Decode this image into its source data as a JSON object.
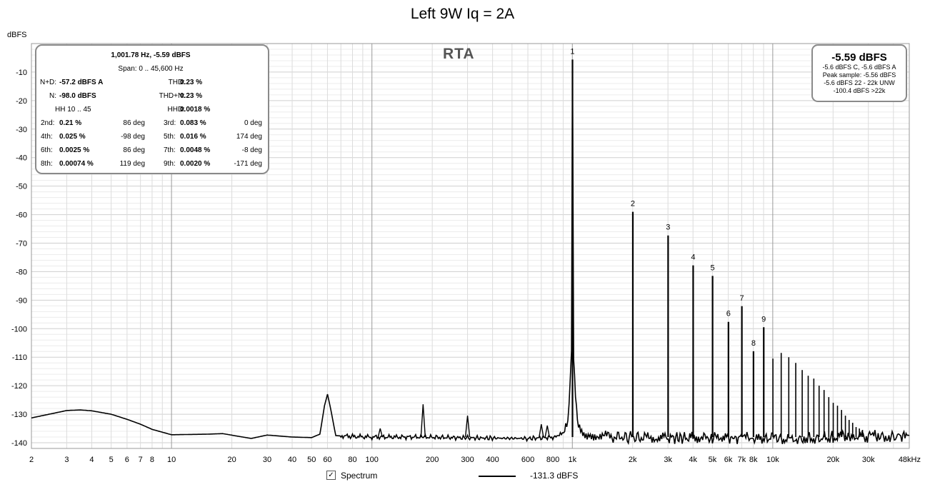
{
  "title": "Left 9W Iq = 2A",
  "y_unit": "dBFS",
  "rta_label": "RTA",
  "info": {
    "header": "1,001.78 Hz, -5.59 dBFS",
    "span": "Span: 0 .. 45,600 Hz",
    "nd_label": "N+D:",
    "nd_value": "-57.2 dBFS A",
    "thd_label": "THD:",
    "thd_value": "0.23 %",
    "n_label": "N:",
    "n_value": "-98.0 dBFS",
    "thdn_label": "THD+N:",
    "thdn_value": "0.23 %",
    "hh_label": "HH 10 .. 45",
    "hhd_label": "HHD:",
    "hhd_value": "0.0018 %",
    "harmonics": [
      {
        "l1": "2nd:",
        "v1": "0.21 %",
        "d1": "86 deg",
        "l2": "3rd:",
        "v2": "0.083 %",
        "d2": "0 deg"
      },
      {
        "l1": "4th:",
        "v1": "0.025 %",
        "d1": "-98 deg",
        "l2": "5th:",
        "v2": "0.016 %",
        "d2": "174 deg"
      },
      {
        "l1": "6th:",
        "v1": "0.0025 %",
        "d1": "86 deg",
        "l2": "7th:",
        "v2": "0.0048 %",
        "d2": "-8 deg"
      },
      {
        "l1": "8th:",
        "v1": "0.00074 %",
        "d1": "119 deg",
        "l2": "9th:",
        "v2": "0.0020 %",
        "d2": "-171 deg"
      }
    ]
  },
  "peak_box": {
    "main": "-5.59 dBFS",
    "lines": [
      "-5.6 dBFS C, -5.6 dBFS A",
      "Peak sample: -5.56 dBFS",
      "-5.6 dBFS 22 - 22k UNW",
      "-100.4 dBFS >22k"
    ]
  },
  "legend": {
    "checkbox": "✓",
    "label": "Spectrum",
    "value": "-131.3 dBFS"
  },
  "chart_data": {
    "type": "line",
    "x_scale": "log",
    "xlim": [
      2,
      48000
    ],
    "ylim": [
      -142,
      0
    ],
    "ylabel": "dBFS",
    "y_ticks": [
      -10,
      -20,
      -30,
      -40,
      -50,
      -60,
      -70,
      -80,
      -90,
      -100,
      -110,
      -120,
      -130,
      -140
    ],
    "x_ticks": [
      {
        "v": 2,
        "t": "2"
      },
      {
        "v": 3,
        "t": "3"
      },
      {
        "v": 4,
        "t": "4"
      },
      {
        "v": 5,
        "t": "5"
      },
      {
        "v": 6,
        "t": "6"
      },
      {
        "v": 7,
        "t": "7"
      },
      {
        "v": 8,
        "t": "8"
      },
      {
        "v": 10,
        "t": "10"
      },
      {
        "v": 20,
        "t": "20"
      },
      {
        "v": 30,
        "t": "30"
      },
      {
        "v": 40,
        "t": "40"
      },
      {
        "v": 50,
        "t": "50"
      },
      {
        "v": 60,
        "t": "60"
      },
      {
        "v": 80,
        "t": "80"
      },
      {
        "v": 100,
        "t": "100"
      },
      {
        "v": 200,
        "t": "200"
      },
      {
        "v": 300,
        "t": "300"
      },
      {
        "v": 400,
        "t": "400"
      },
      {
        "v": 600,
        "t": "600"
      },
      {
        "v": 800,
        "t": "800"
      },
      {
        "v": 1000,
        "t": "1k"
      },
      {
        "v": 2000,
        "t": "2k"
      },
      {
        "v": 3000,
        "t": "3k"
      },
      {
        "v": 4000,
        "t": "4k"
      },
      {
        "v": 5000,
        "t": "5k"
      },
      {
        "v": 6000,
        "t": "6k"
      },
      {
        "v": 7000,
        "t": "7k"
      },
      {
        "v": 8000,
        "t": "8k"
      },
      {
        "v": 10000,
        "t": "10k"
      },
      {
        "v": 20000,
        "t": "20k"
      },
      {
        "v": 30000,
        "t": "30k"
      },
      {
        "v": 48000,
        "t": "48kHz"
      }
    ],
    "grid": true,
    "noise_floor": [
      [
        2,
        -131.3
      ],
      [
        3,
        -128.7
      ],
      [
        3.5,
        -128.5
      ],
      [
        4,
        -128.8
      ],
      [
        5,
        -130.0
      ],
      [
        6,
        -131.8
      ],
      [
        7,
        -133.5
      ],
      [
        8,
        -135.3
      ],
      [
        10,
        -137.2
      ],
      [
        15,
        -137.0
      ],
      [
        18,
        -136.8
      ],
      [
        25,
        -138.5
      ],
      [
        30,
        -137.3
      ],
      [
        40,
        -138.0
      ],
      [
        50,
        -138.2
      ],
      [
        55,
        -137.0
      ],
      [
        58,
        -127.0
      ],
      [
        60,
        -123.0
      ],
      [
        62,
        -127.5
      ],
      [
        66,
        -137.5
      ],
      [
        80,
        -137.8
      ],
      [
        100,
        -138.0
      ],
      [
        180,
        -138.0
      ],
      [
        300,
        -138.3
      ],
      [
        600,
        -138.5
      ],
      [
        850,
        -138.0
      ],
      [
        950,
        -134.0
      ],
      [
        990,
        -110.0
      ],
      [
        1001.78,
        -5.59
      ],
      [
        1015,
        -110.0
      ],
      [
        1060,
        -134.0
      ],
      [
        1200,
        -137.5
      ],
      [
        2000,
        -138.2
      ],
      [
        5000,
        -138.3
      ],
      [
        10000,
        -138.5
      ],
      [
        20000,
        -138.0
      ],
      [
        48000,
        -137.5
      ]
    ],
    "spurs": [
      {
        "f": 110,
        "db": -135.0
      },
      {
        "f": 180,
        "db": -126.5
      },
      {
        "f": 300,
        "db": -130.5
      },
      {
        "f": 700,
        "db": -133.5
      },
      {
        "f": 750,
        "db": -134.0
      }
    ],
    "harmonics": [
      {
        "n": "1",
        "f": 1001.78,
        "db": -5.59
      },
      {
        "n": "2",
        "f": 2003.6,
        "db": -59.0
      },
      {
        "n": "3",
        "f": 3005.3,
        "db": -67.3
      },
      {
        "n": "4",
        "f": 4007.1,
        "db": -77.8
      },
      {
        "n": "5",
        "f": 5008.9,
        "db": -81.5
      },
      {
        "n": "6",
        "f": 6010.7,
        "db": -97.6
      },
      {
        "n": "7",
        "f": 7012.5,
        "db": -92.1
      },
      {
        "n": "8",
        "f": 8014.2,
        "db": -107.9
      },
      {
        "n": "9",
        "f": 9016.0,
        "db": -99.5
      }
    ],
    "higher_harmonics": [
      {
        "f": 10017.8,
        "db": -110.5
      },
      {
        "f": 11019.6,
        "db": -108.5
      },
      {
        "f": 12021.4,
        "db": -110.0
      },
      {
        "f": 13023.1,
        "db": -112.0
      },
      {
        "f": 14024.9,
        "db": -114.5
      },
      {
        "f": 15026.7,
        "db": -116.5
      },
      {
        "f": 16028.5,
        "db": -117.5
      },
      {
        "f": 17030.3,
        "db": -120.0
      },
      {
        "f": 18032.0,
        "db": -121.5
      },
      {
        "f": 19033.8,
        "db": -124.0
      },
      {
        "f": 20035.6,
        "db": -126.0
      },
      {
        "f": 21037.4,
        "db": -127.0
      },
      {
        "f": 22039.2,
        "db": -128.5
      },
      {
        "f": 23041.0,
        "db": -130.5
      },
      {
        "f": 24042.7,
        "db": -132.0
      },
      {
        "f": 25044.5,
        "db": -133.0
      },
      {
        "f": 26046.3,
        "db": -134.5
      },
      {
        "f": 27048.1,
        "db": -135.0
      },
      {
        "f": 28049.8,
        "db": -135.5
      }
    ]
  }
}
